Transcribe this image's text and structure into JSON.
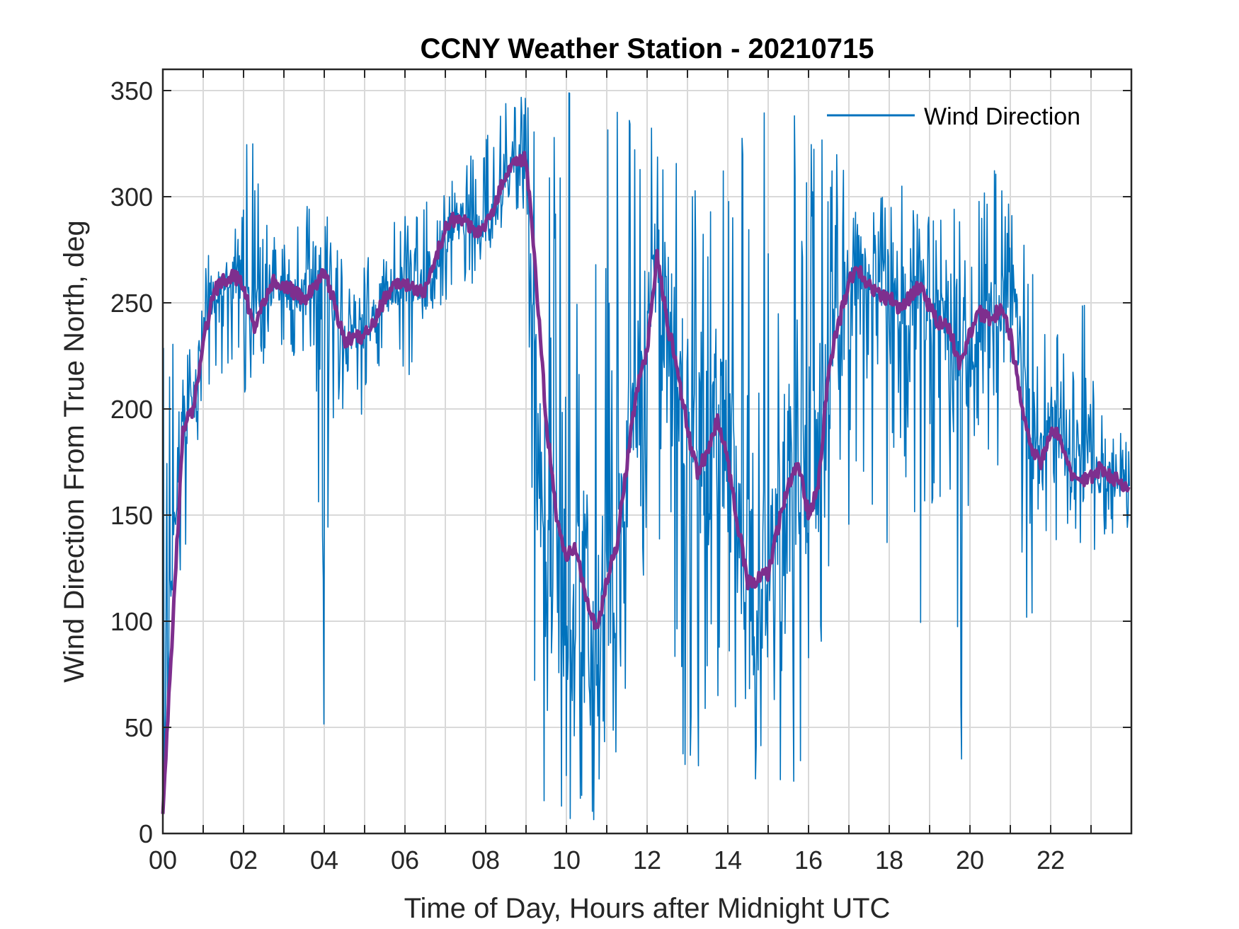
{
  "chart_data": {
    "type": "line",
    "title": "CCNY Weather Station - 20210715",
    "xlabel": "Time of Day, Hours after Midnight UTC",
    "ylabel": "Wind Direction From True North, deg",
    "xlim": [
      0,
      24
    ],
    "ylim": [
      0,
      360
    ],
    "x_ticks": [
      0,
      2,
      4,
      6,
      8,
      10,
      12,
      14,
      16,
      18,
      20,
      22
    ],
    "x_tick_labels": [
      "00",
      "02",
      "04",
      "06",
      "08",
      "10",
      "12",
      "14",
      "16",
      "18",
      "20",
      "22"
    ],
    "y_ticks": [
      0,
      50,
      100,
      150,
      200,
      250,
      300,
      350
    ],
    "y_tick_labels": [
      "0",
      "50",
      "100",
      "150",
      "200",
      "250",
      "300",
      "350"
    ],
    "grid": true,
    "legend": {
      "position": "top-right",
      "entries": [
        "Wind Direction"
      ]
    },
    "series": [
      {
        "name": "Wind Direction",
        "color": "#0072BD",
        "style": "raw",
        "x": [
          0.0,
          0.25,
          0.5,
          0.75,
          1.0,
          1.25,
          1.5,
          1.75,
          2.0,
          2.25,
          2.5,
          2.75,
          3.0,
          3.25,
          3.5,
          3.75,
          4.0,
          4.25,
          4.5,
          4.75,
          5.0,
          5.25,
          5.5,
          5.75,
          6.0,
          6.25,
          6.5,
          6.75,
          7.0,
          7.25,
          7.5,
          7.75,
          8.0,
          8.25,
          8.5,
          8.75,
          9.0,
          9.25,
          9.5,
          9.75,
          10.0,
          10.25,
          10.5,
          10.75,
          11.0,
          11.25,
          11.5,
          11.75,
          12.0,
          12.25,
          12.5,
          12.75,
          13.0,
          13.25,
          13.5,
          13.75,
          14.0,
          14.25,
          14.5,
          14.75,
          15.0,
          15.25,
          15.5,
          15.75,
          16.0,
          16.25,
          16.5,
          16.75,
          17.0,
          17.25,
          17.5,
          17.75,
          18.0,
          18.25,
          18.5,
          18.75,
          19.0,
          19.25,
          19.5,
          19.75,
          20.0,
          20.25,
          20.5,
          20.75,
          21.0,
          21.25,
          21.5,
          21.75,
          22.0,
          22.25,
          22.5,
          22.75,
          23.0,
          23.25,
          23.5,
          23.75,
          23.95
        ],
        "y": [
          10,
          140,
          195,
          205,
          240,
          255,
          262,
          262,
          255,
          240,
          252,
          258,
          258,
          250,
          255,
          258,
          262,
          240,
          232,
          235,
          235,
          245,
          255,
          258,
          262,
          255,
          255,
          265,
          280,
          288,
          288,
          285,
          285,
          295,
          305,
          315,
          318,
          200,
          150,
          110,
          110,
          130,
          100,
          95,
          120,
          130,
          170,
          210,
          225,
          270,
          240,
          225,
          190,
          180,
          175,
          190,
          180,
          150,
          120,
          118,
          122,
          140,
          160,
          180,
          150,
          170,
          215,
          238,
          255,
          265,
          260,
          255,
          252,
          248,
          252,
          256,
          248,
          242,
          235,
          230,
          220,
          240,
          245,
          240,
          248,
          230,
          195,
          175,
          190,
          188,
          170,
          165,
          168,
          170,
          168,
          165,
          160
        ],
        "range_min": [
          5,
          130,
          95,
          170,
          200,
          210,
          215,
          210,
          200,
          215,
          220,
          225,
          225,
          220,
          225,
          225,
          15,
          190,
          180,
          190,
          195,
          215,
          225,
          225,
          200,
          225,
          230,
          240,
          250,
          255,
          255,
          260,
          270,
          280,
          285,
          290,
          290,
          10,
          5,
          0,
          5,
          5,
          5,
          5,
          20,
          40,
          60,
          80,
          100,
          110,
          100,
          60,
          15,
          20,
          40,
          45,
          35,
          30,
          20,
          10,
          10,
          20,
          10,
          5,
          5,
          40,
          100,
          130,
          145,
          160,
          170,
          85,
          150,
          160,
          160,
          80,
          130,
          150,
          120,
          0,
          170,
          180,
          175,
          150,
          140,
          140,
          50,
          120,
          130,
          140,
          140,
          130,
          110,
          140,
          140,
          140,
          145
        ],
        "range_max": [
          255,
          250,
          235,
          250,
          280,
          290,
          280,
          280,
          330,
          330,
          300,
          290,
          285,
          285,
          290,
          310,
          345,
          285,
          270,
          275,
          270,
          280,
          290,
          290,
          295,
          300,
          310,
          320,
          310,
          315,
          320,
          320,
          330,
          340,
          345,
          352,
          355,
          354,
          350,
          352,
          350,
          350,
          345,
          345,
          340,
          340,
          340,
          350,
          350,
          345,
          340,
          340,
          345,
          345,
          340,
          345,
          340,
          340,
          345,
          350,
          345,
          340,
          345,
          345,
          340,
          340,
          320,
          340,
          330,
          320,
          310,
          305,
          305,
          305,
          305,
          300,
          295,
          290,
          290,
          300,
          290,
          300,
          325,
          305,
          295,
          280,
          275,
          240,
          250,
          230,
          220,
          270,
          215,
          215,
          195,
          190,
          185
        ]
      },
      {
        "name": "",
        "color": "#7E2F8E",
        "style": "smoothed",
        "x": [
          0.0,
          0.25,
          0.5,
          0.75,
          1.0,
          1.25,
          1.5,
          1.75,
          2.0,
          2.25,
          2.5,
          2.75,
          3.0,
          3.25,
          3.5,
          3.75,
          4.0,
          4.25,
          4.5,
          4.75,
          5.0,
          5.25,
          5.5,
          5.75,
          6.0,
          6.25,
          6.5,
          6.75,
          7.0,
          7.25,
          7.5,
          7.75,
          8.0,
          8.25,
          8.5,
          8.75,
          9.0,
          9.25,
          9.5,
          9.75,
          10.0,
          10.25,
          10.5,
          10.75,
          11.0,
          11.25,
          11.5,
          11.75,
          12.0,
          12.25,
          12.5,
          12.75,
          13.0,
          13.25,
          13.5,
          13.75,
          14.0,
          14.25,
          14.5,
          14.75,
          15.0,
          15.25,
          15.5,
          15.75,
          16.0,
          16.25,
          16.5,
          16.75,
          17.0,
          17.25,
          17.5,
          17.75,
          18.0,
          18.25,
          18.5,
          18.75,
          19.0,
          19.25,
          19.5,
          19.75,
          20.0,
          20.25,
          20.5,
          20.75,
          21.0,
          21.25,
          21.5,
          21.75,
          22.0,
          22.25,
          22.5,
          22.75,
          23.0,
          23.25,
          23.5,
          23.75,
          23.95
        ],
        "y": [
          8,
          100,
          190,
          200,
          230,
          255,
          261,
          263,
          258,
          238,
          250,
          260,
          258,
          255,
          252,
          258,
          265,
          250,
          232,
          233,
          235,
          242,
          252,
          258,
          260,
          255,
          256,
          270,
          285,
          290,
          288,
          283,
          285,
          298,
          310,
          316,
          318,
          260,
          195,
          150,
          130,
          135,
          110,
          95,
          120,
          135,
          175,
          210,
          228,
          272,
          240,
          220,
          190,
          170,
          180,
          195,
          175,
          145,
          118,
          120,
          122,
          145,
          165,
          175,
          150,
          165,
          220,
          240,
          260,
          266,
          258,
          254,
          252,
          248,
          252,
          258,
          248,
          240,
          238,
          220,
          235,
          245,
          242,
          247,
          235,
          205,
          180,
          175,
          190,
          186,
          168,
          165,
          168,
          172,
          168,
          165,
          162
        ]
      }
    ]
  }
}
